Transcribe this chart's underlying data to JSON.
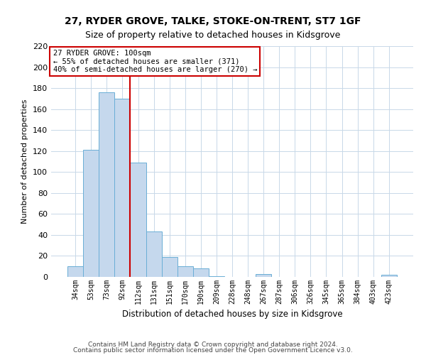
{
  "title": "27, RYDER GROVE, TALKE, STOKE-ON-TRENT, ST7 1GF",
  "subtitle": "Size of property relative to detached houses in Kidsgrove",
  "xlabel": "Distribution of detached houses by size in Kidsgrove",
  "ylabel": "Number of detached properties",
  "bar_labels": [
    "34sqm",
    "53sqm",
    "73sqm",
    "92sqm",
    "112sqm",
    "131sqm",
    "151sqm",
    "170sqm",
    "190sqm",
    "209sqm",
    "228sqm",
    "248sqm",
    "267sqm",
    "287sqm",
    "306sqm",
    "326sqm",
    "345sqm",
    "365sqm",
    "384sqm",
    "403sqm",
    "423sqm"
  ],
  "bar_values": [
    10,
    121,
    176,
    170,
    109,
    43,
    19,
    10,
    8,
    1,
    0,
    0,
    3,
    0,
    0,
    0,
    0,
    0,
    0,
    0,
    2
  ],
  "bar_color": "#c5d8ed",
  "bar_edgecolor": "#6aaed6",
  "vline_color": "#cc0000",
  "annotation_title": "27 RYDER GROVE: 100sqm",
  "annotation_line1": "← 55% of detached houses are smaller (371)",
  "annotation_line2": "40% of semi-detached houses are larger (270) →",
  "annotation_box_edgecolor": "#cc0000",
  "ylim_max": 220,
  "yticks": [
    0,
    20,
    40,
    60,
    80,
    100,
    120,
    140,
    160,
    180,
    200,
    220
  ],
  "footnote1": "Contains HM Land Registry data © Crown copyright and database right 2024.",
  "footnote2": "Contains public sector information licensed under the Open Government Licence v3.0.",
  "background_color": "#ffffff",
  "grid_color": "#c8d8e8"
}
